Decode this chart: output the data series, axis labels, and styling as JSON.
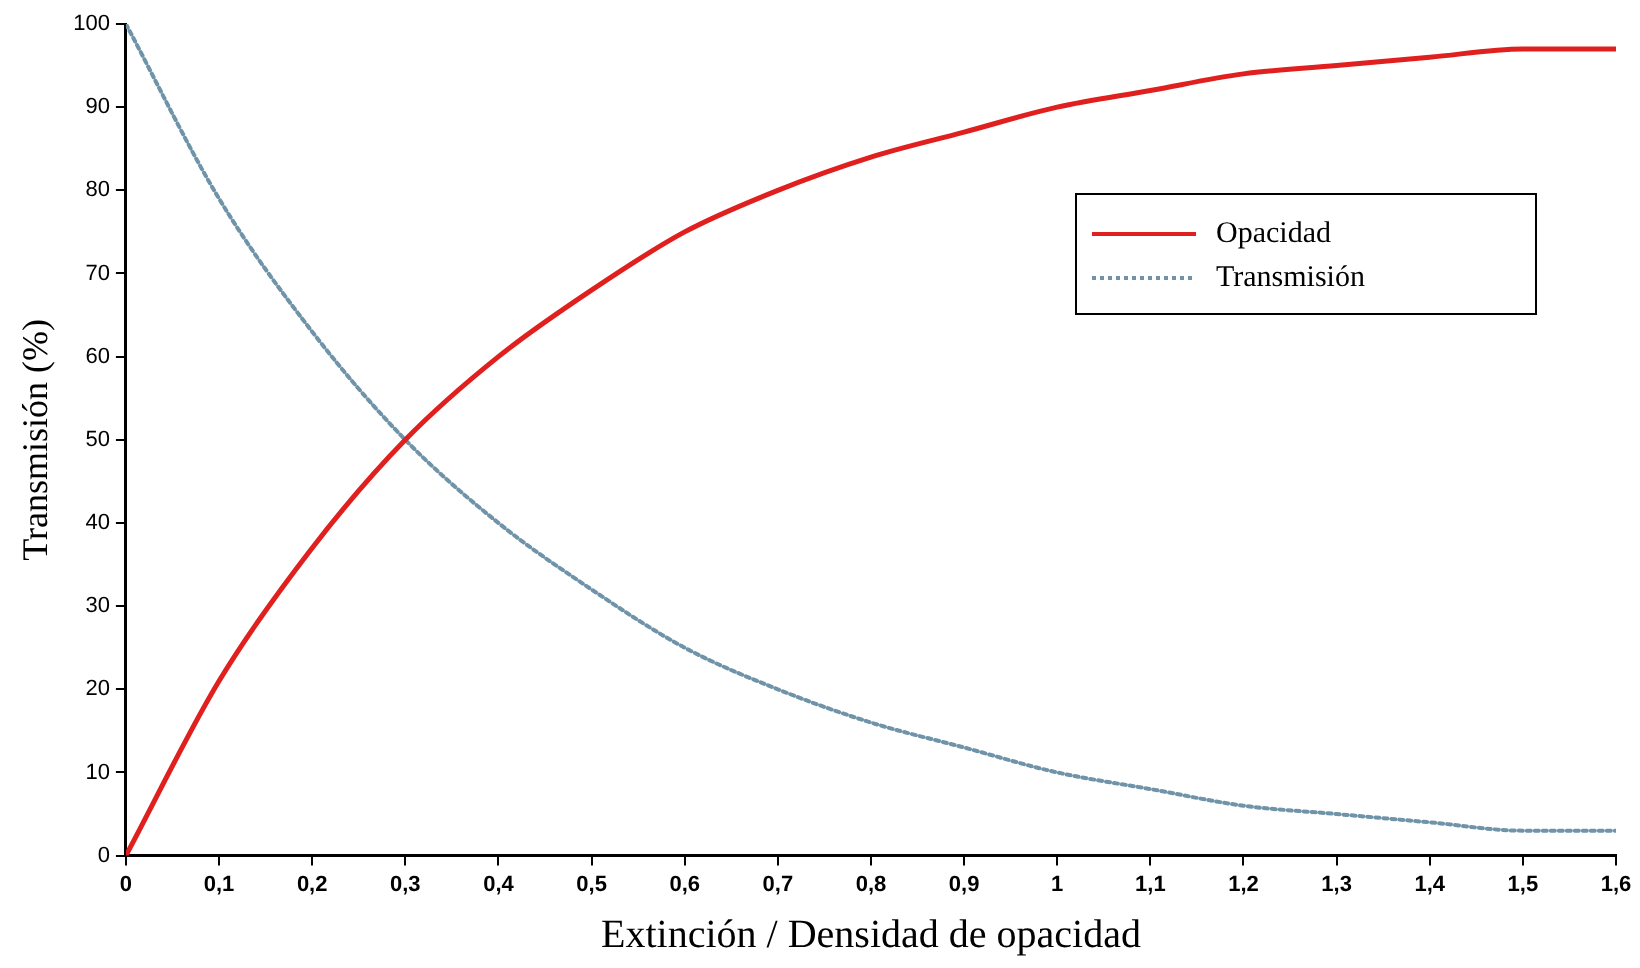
{
  "chart_data": {
    "type": "line",
    "xlabel": "Extinción / Densidad de opacidad",
    "ylabel": "Transmisión (%)",
    "x": [
      0,
      0.1,
      0.2,
      0.3,
      0.4,
      0.5,
      0.6,
      0.7,
      0.8,
      0.9,
      1,
      1.1,
      1.2,
      1.3,
      1.4,
      1.5,
      1.6
    ],
    "series": [
      {
        "name": "Opacidad",
        "color": "#e0201e",
        "line_style": "solid",
        "values": [
          0,
          21,
          37,
          50,
          60,
          68,
          75,
          80,
          84,
          87,
          90,
          92,
          94,
          95,
          96,
          97,
          97
        ]
      },
      {
        "name": "Transmisión",
        "color": "#6f93a8",
        "line_style": "dotted",
        "values": [
          100,
          79,
          63,
          50,
          40,
          32,
          25,
          20,
          16,
          13,
          10,
          8,
          6,
          5,
          4,
          3,
          3
        ]
      }
    ],
    "xlim": [
      0,
      1.6
    ],
    "xticks": [
      0,
      {
        "value": 0.1,
        "label": "0,1"
      },
      {
        "value": 0.2,
        "label": "0,2"
      },
      {
        "value": 0.3,
        "label": "0,3"
      },
      {
        "value": 0.4,
        "label": "0,4"
      },
      {
        "value": 0.5,
        "label": "0,5"
      },
      {
        "value": 0.6,
        "label": "0,6"
      },
      {
        "value": 0.7,
        "label": "0,7"
      },
      {
        "value": 0.8,
        "label": "0,8"
      },
      {
        "value": 0.9,
        "label": "0,9"
      },
      1,
      {
        "value": 1.1,
        "label": "1,1"
      },
      {
        "value": 1.2,
        "label": "1,2"
      },
      {
        "value": 1.3,
        "label": "1,3"
      },
      {
        "value": 1.4,
        "label": "1,4"
      },
      {
        "value": 1.5,
        "label": "1,5"
      },
      {
        "value": 1.6,
        "label": "1,6"
      }
    ],
    "ylim": [
      0,
      100
    ],
    "yticks": [
      0,
      10,
      20,
      30,
      40,
      50,
      60,
      70,
      80,
      90,
      100
    ],
    "grid": false,
    "legend": "top right",
    "marker": "none"
  }
}
